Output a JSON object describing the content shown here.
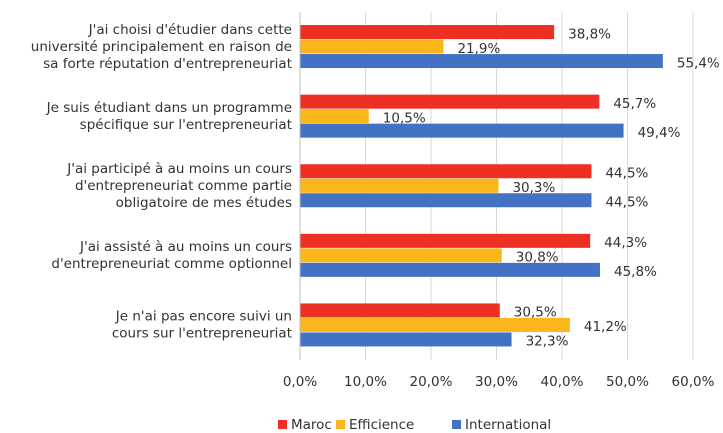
{
  "chart_data": {
    "type": "bar",
    "orientation": "horizontal",
    "categories": [
      [
        "J'ai choisi d'étudier dans cette",
        "université principalement en raison de",
        "sa forte réputation d'entrepreneuriat"
      ],
      [
        "Je suis étudiant dans un programme",
        "spécifique  sur l'entrepreneuriat"
      ],
      [
        "J'ai participé à au moins un cours",
        "d'entrepreneuriat comme partie",
        "obligatoire de mes études"
      ],
      [
        "J'ai assisté à au moins un cours",
        "d'entrepreneuriat comme optionnel"
      ],
      [
        "Je n'ai pas encore suivi un",
        "cours sur l'entrepreneuriat"
      ]
    ],
    "series": [
      {
        "name": "Maroc",
        "color": "#ee2f24",
        "values": [
          38.8,
          45.7,
          44.5,
          44.3,
          30.5
        ],
        "value_labels": [
          "38,8%",
          "45,7%",
          "44,5%",
          "44,3%",
          "30,5%"
        ]
      },
      {
        "name": "Efficience",
        "color": "#fbb61b",
        "values": [
          21.9,
          10.5,
          30.3,
          30.8,
          41.2
        ],
        "value_labels": [
          "21,9%",
          "10,5%",
          "30,3%",
          "30,8%",
          "41,2%"
        ]
      },
      {
        "name": "International",
        "color": "#4372c4",
        "values": [
          55.4,
          49.4,
          44.5,
          45.8,
          32.3
        ],
        "value_labels": [
          "55,4%",
          "49,4%",
          "44,5%",
          "45,8%",
          "32,3%"
        ]
      }
    ],
    "xlim": [
      0,
      60
    ],
    "xticks": [
      {
        "value": 0,
        "label": "0,0%"
      },
      {
        "value": 10,
        "label": "10,0%"
      },
      {
        "value": 20,
        "label": "20,0%"
      },
      {
        "value": 30,
        "label": "30,0%"
      },
      {
        "value": 40,
        "label": "40,0%"
      },
      {
        "value": 50,
        "label": "50,0%"
      },
      {
        "value": 60,
        "label": "60,0%"
      }
    ],
    "grid": true,
    "legend": "bottom"
  }
}
